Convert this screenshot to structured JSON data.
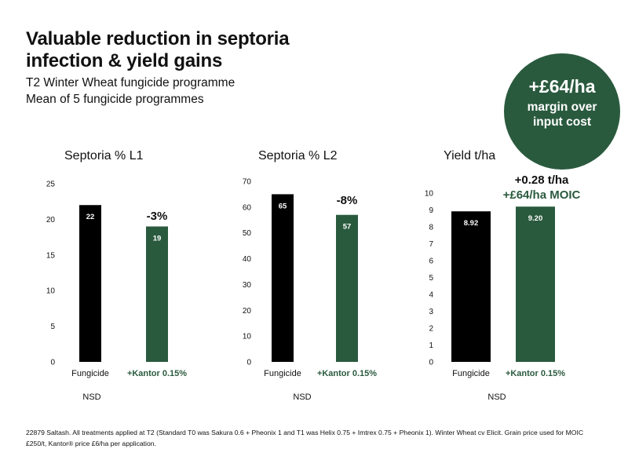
{
  "header": {
    "title_line1": "Valuable reduction in septoria",
    "title_line2": "infection & yield gains",
    "subtitle_line1": "T2 Winter Wheat fungicide programme",
    "subtitle_line2": "Mean of 5 fungicide programmes"
  },
  "badge": {
    "value": "+£64/ha",
    "line1": "margin over",
    "line2": "input cost"
  },
  "colors": {
    "fungicide": "#000000",
    "kantor": "#2a5a3e"
  },
  "chart_data": [
    {
      "type": "bar",
      "title": "Septoria % L1",
      "categories": [
        "Fungicide",
        "+Kantor 0.15%"
      ],
      "values": [
        22,
        19
      ],
      "value_labels": [
        "22",
        "19"
      ],
      "ylim": [
        0,
        25
      ],
      "yticks": [
        0,
        5,
        10,
        15,
        20,
        25
      ],
      "annotations": [
        "-3%"
      ],
      "footer": "NSD"
    },
    {
      "type": "bar",
      "title": "Septoria % L2",
      "categories": [
        "Fungicide",
        "+Kantor 0.15%"
      ],
      "values": [
        65,
        57
      ],
      "value_labels": [
        "65",
        "57"
      ],
      "ylim": [
        0,
        70
      ],
      "yticks": [
        0,
        10,
        20,
        30,
        40,
        50,
        60,
        70
      ],
      "annotations": [
        "-8%"
      ],
      "footer": "NSD"
    },
    {
      "type": "bar",
      "title": "Yield t/ha",
      "categories": [
        "Fungicide",
        "+Kantor 0.15%"
      ],
      "values": [
        8.92,
        9.2
      ],
      "value_labels": [
        "8.92",
        "9.20"
      ],
      "ylim": [
        0,
        10
      ],
      "yticks": [
        0,
        1,
        2,
        3,
        4,
        5,
        6,
        7,
        8,
        9,
        10
      ],
      "annotations": [
        "+0.28 t/ha",
        "+£64/ha MOIC"
      ],
      "footer": "NSD"
    }
  ],
  "footnote": "22879 Saltash.  All treatments applied at T2 (Standard T0 was Sakura 0.6 + Pheonix 1 and T1 was Helix 0.75 + Imtrex 0.75 + Pheonix 1).  Winter Wheat cv Elicit. Grain price used for MOIC £250/t, Kantor® price £6/ha per application."
}
